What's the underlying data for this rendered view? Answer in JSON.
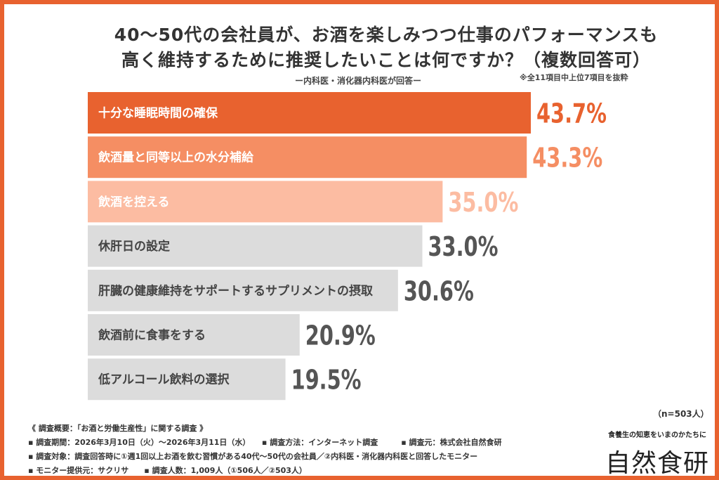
{
  "chart_data": {
    "type": "bar",
    "orientation": "horizontal",
    "title": [
      "40〜50代の会社員が、お酒を楽しみつつ仕事のパフォーマンスも",
      "高く維持するために推奨したいことは何ですか？（複数回答可）"
    ],
    "subtitle": "ー内科医・消化器内科医が回答ー",
    "note": "※全11項目中上位7項目を抜粋",
    "categories": [
      "十分な睡眠時間の確保",
      "飲酒量と同等以上の水分補給",
      "飲酒を控える",
      "休肝日の設定",
      "肝臓の健康維持をサポートするサプリメントの摂取",
      "飲酒前に食事をする",
      "低アルコール飲料の選択"
    ],
    "values": [
      43.7,
      43.3,
      35.0,
      33.0,
      30.6,
      20.9,
      19.5
    ],
    "value_labels": [
      "43.7%",
      "43.3%",
      "35.0%",
      "33.0%",
      "30.6%",
      "20.9%",
      "19.5%"
    ],
    "bar_colors": [
      "#E8622F",
      "#F58E63",
      "#FCBCA2",
      "#DCDCDC",
      "#DCDCDC",
      "#DCDCDC",
      "#DCDCDC"
    ],
    "label_colors": [
      "#ffffff",
      "#ffffff",
      "#ffffff",
      "#444444",
      "#444444",
      "#444444",
      "#444444"
    ],
    "value_colors": [
      "#E8622F",
      "#F58E63",
      "#FCBCA2",
      "#555555",
      "#555555",
      "#555555",
      "#555555"
    ],
    "sample": "（n=503人）"
  },
  "footer": {
    "lines": [
      "《 調査概要：「お酒と労働生産性」に関する調査 》",
      "▪ 調査期間：2026年3月10日（火）〜2026年3月11日（水）　　▪ 調査方法：インターネット調査　　　▪ 調査元：株式会社自然食研",
      "▪ 調査対象：調査回答時に①週1回以上お酒を飲む習慣がある40代〜50代の会社員／②内科医・消化器内科医と回答したモニター",
      "▪ モニター提供元：サクリサ　　▪ 調査人数：1,009人（①506人／②503人）"
    ],
    "logo_tagline": "食養生の知恵をいまのかたちに",
    "logo": "自然食研"
  },
  "colors": {
    "frame": "#E8622F"
  }
}
